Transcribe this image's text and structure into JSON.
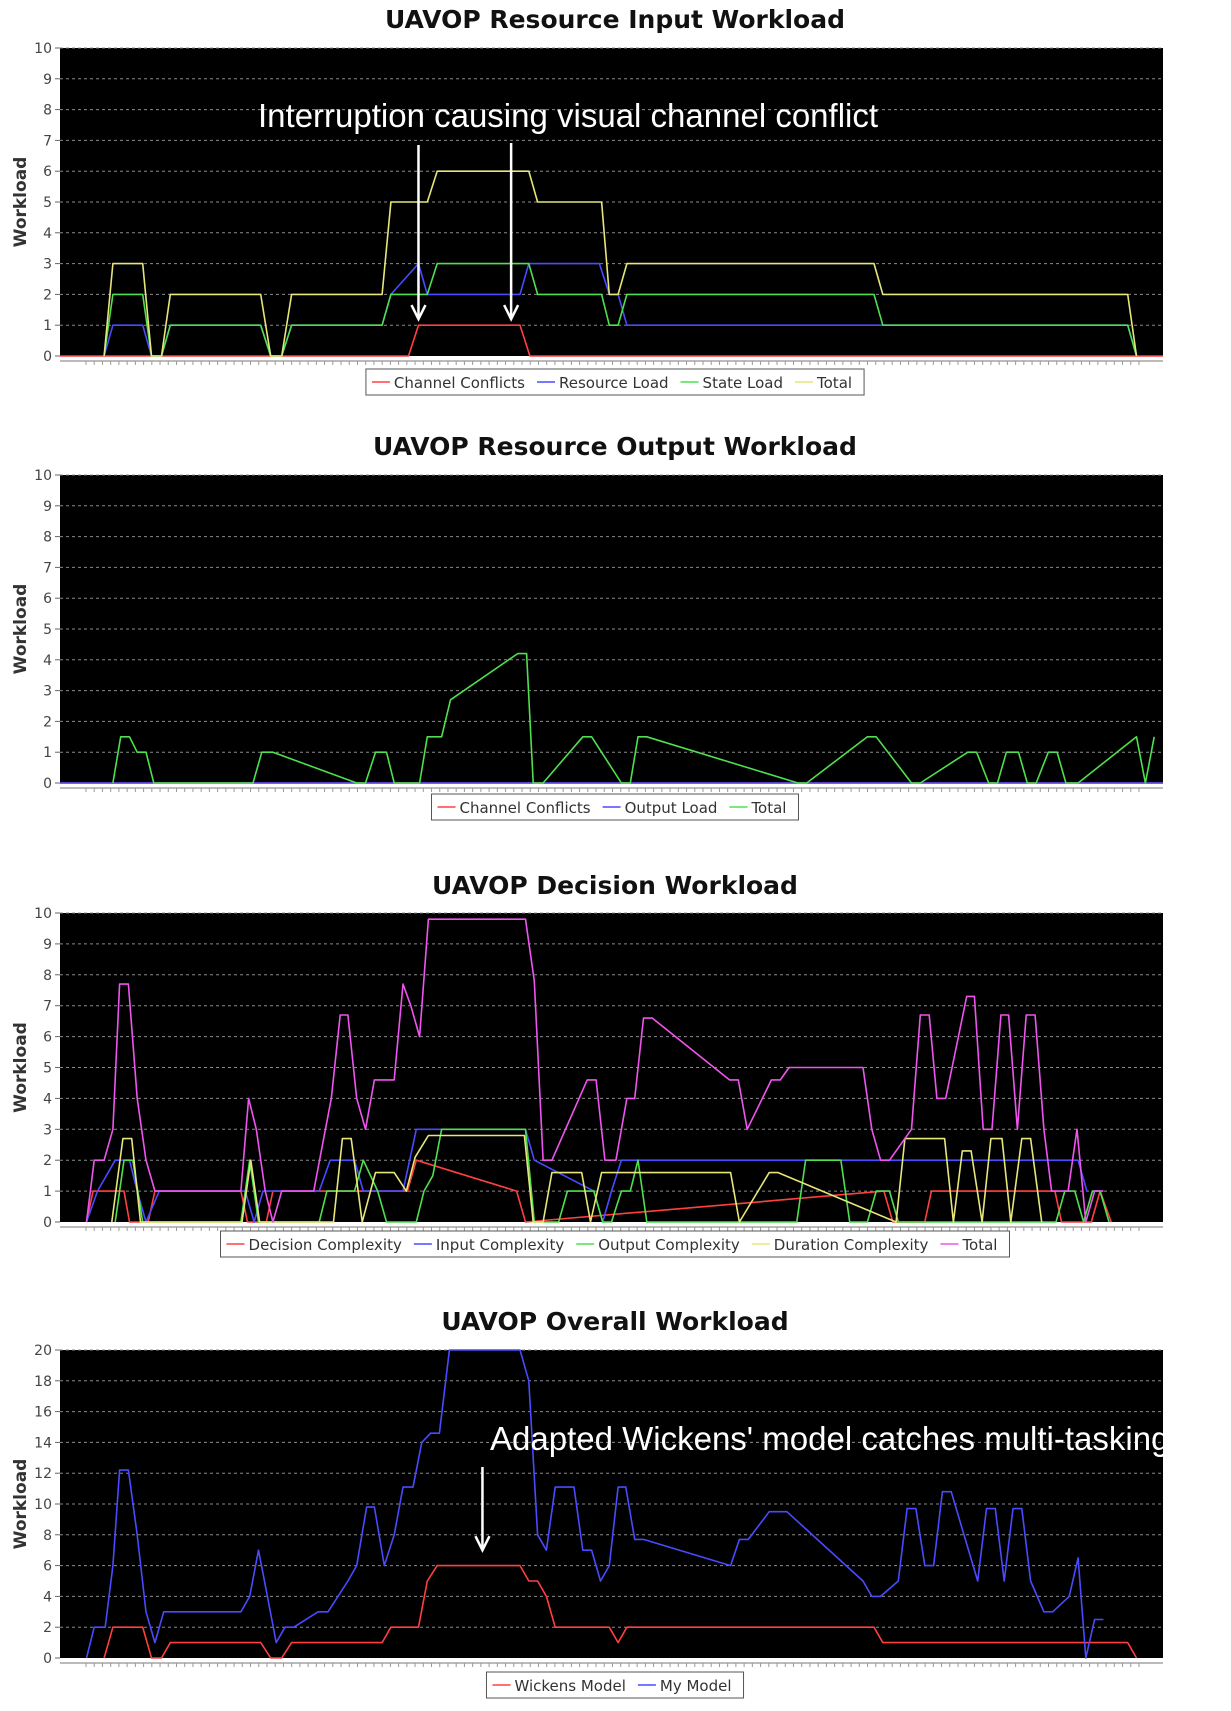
{
  "colors": {
    "red": "#ff4040",
    "blue": "#4a4aff",
    "green": "#4ee04e",
    "yellow": "#e6e67a",
    "magenta": "#ee55ee",
    "plot_background": "#000000",
    "grid": "#8a8a8a",
    "annotation": "#ffffff"
  },
  "chart_data": [
    {
      "type": "line",
      "title": "UAVOP Resource Input Workload",
      "xlabel": "",
      "ylabel": "Workload",
      "ylim": [
        0,
        10
      ],
      "yticks": [
        0,
        1,
        2,
        3,
        4,
        5,
        6,
        7,
        8,
        9,
        10
      ],
      "xlim": [
        0,
        100
      ],
      "grid": true,
      "legend": "bottom-center",
      "annotations": [
        {
          "text": "Interruption causing visual channel conflict",
          "arrows": [
            [
              32.5,
              1.2
            ],
            [
              40.9,
              1.2
            ]
          ]
        }
      ],
      "series": [
        {
          "name": "Channel Conflicts",
          "color": "red",
          "x": [
            0,
            31.6,
            32.5,
            41.7,
            42.6,
            100
          ],
          "y": [
            0,
            0,
            1,
            1,
            0,
            0
          ]
        },
        {
          "name": "Resource Load",
          "color": "blue",
          "x": [
            4,
            4.8,
            7.5,
            8.3,
            9.2,
            10,
            18.2,
            19.1,
            20.1,
            21,
            29.2,
            30,
            32.5,
            33.3,
            41.7,
            42.5,
            48.9,
            49.8,
            50.6,
            51.4,
            96.8,
            97.6
          ],
          "y": [
            0,
            1,
            1,
            0,
            0,
            1,
            1,
            0,
            0,
            1,
            1,
            2,
            3,
            2,
            2,
            3,
            3,
            2,
            2,
            1,
            1,
            0
          ]
        },
        {
          "name": "State Load",
          "color": "green",
          "x": [
            4,
            4.8,
            7.5,
            8.3,
            9.2,
            10,
            18.2,
            19.1,
            20.1,
            21,
            29.2,
            30,
            32.5,
            33.3,
            34.2,
            42.5,
            43.3,
            49.1,
            49.8,
            50.6,
            51.4,
            73.8,
            74.6,
            96.8,
            97.6
          ],
          "y": [
            0,
            2,
            2,
            0,
            0,
            1,
            1,
            0,
            0,
            1,
            1,
            2,
            2,
            2,
            3,
            3,
            2,
            2,
            1,
            1,
            2,
            2,
            1,
            1,
            0
          ]
        },
        {
          "name": "Total",
          "color": "yellow",
          "x": [
            4,
            4.8,
            7.5,
            8.3,
            9.2,
            10,
            18.2,
            19.1,
            20.1,
            21,
            29.2,
            30,
            32.5,
            33.3,
            34.2,
            42.5,
            43.3,
            49.1,
            49.8,
            50.6,
            51.4,
            73.8,
            74.6,
            96.8,
            97.6
          ],
          "y": [
            0,
            3,
            3,
            0,
            0,
            2,
            2,
            0,
            0,
            2,
            2,
            5,
            5,
            5,
            6,
            6,
            5,
            5,
            2,
            2,
            3,
            3,
            2,
            2,
            0
          ]
        }
      ]
    },
    {
      "type": "line",
      "title": "UAVOP Resource Output Workload",
      "xlabel": "",
      "ylabel": "Workload",
      "ylim": [
        0,
        10
      ],
      "yticks": [
        0,
        1,
        2,
        3,
        4,
        5,
        6,
        7,
        8,
        9,
        10
      ],
      "xlim": [
        0,
        100
      ],
      "grid": true,
      "legend": "bottom-center",
      "series": [
        {
          "name": "Channel Conflicts",
          "color": "red",
          "x": [
            0,
            100
          ],
          "y": [
            0,
            0
          ]
        },
        {
          "name": "Output Load",
          "color": "blue",
          "x": [
            0,
            100
          ],
          "y": [
            0,
            0
          ]
        },
        {
          "name": "Total",
          "color": "green",
          "x": [
            4.8,
            5.5,
            6.3,
            7,
            7.8,
            8.5,
            17.5,
            18.3,
            19.3,
            26.9,
            27.7,
            28.6,
            29.6,
            30.3,
            32.6,
            33.3,
            33.7,
            34.6,
            35.4,
            41.5,
            42.3,
            42.9,
            43.8,
            47.4,
            48.2,
            50.9,
            51.7,
            52.4,
            53.2,
            66.9,
            67.7,
            73.2,
            74,
            77.2,
            78,
            82.3,
            83.1,
            84.2,
            85,
            85.8,
            86.9,
            87.7,
            88.5,
            89.6,
            90.4,
            91.2,
            92.3,
            97.6,
            98.4,
            99.2
          ],
          "y": [
            0,
            1.5,
            1.5,
            1,
            1,
            0,
            0,
            1,
            1,
            0,
            0,
            1,
            1,
            0,
            0,
            1.5,
            1.5,
            1.5,
            2.7,
            4.2,
            4.2,
            0,
            0,
            1.5,
            1.5,
            0,
            0,
            1.5,
            1.5,
            0,
            0,
            1.5,
            1.5,
            0,
            0,
            1,
            1,
            0,
            0,
            1,
            1,
            0,
            0,
            1,
            1,
            0,
            0,
            1.5,
            0,
            1.5
          ]
        }
      ]
    },
    {
      "type": "line",
      "title": "UAVOP Decision Workload",
      "xlabel": "",
      "ylabel": "Workload",
      "ylim": [
        0,
        10
      ],
      "yticks": [
        0,
        1,
        2,
        3,
        4,
        5,
        6,
        7,
        8,
        9,
        10
      ],
      "xlim": [
        0,
        100
      ],
      "grid": true,
      "legend": "bottom-center",
      "series": [
        {
          "name": "Decision Complexity",
          "color": "red",
          "x": [
            2.4,
            3,
            5.8,
            6.3,
            8,
            8.6,
            16.4,
            17,
            18.7,
            19.3,
            23,
            23.6,
            31.5,
            32.3,
            41.4,
            42.2,
            74.7,
            75.5,
            78.4,
            79,
            90.2,
            90.8,
            93.5,
            94.3,
            95.3
          ],
          "y": [
            0,
            1,
            1,
            0,
            0,
            1,
            1,
            0,
            0,
            1,
            1,
            1,
            1,
            2,
            1,
            0,
            1,
            0,
            0,
            1,
            1,
            0,
            0,
            1,
            0
          ]
        },
        {
          "name": "Input Complexity",
          "color": "blue",
          "x": [
            2.4,
            3.4,
            5,
            6.3,
            7,
            7.8,
            9,
            16.8,
            17.6,
            18.4,
            23.5,
            24.5,
            26.7,
            27.5,
            29.5,
            31.1,
            32.3,
            33.3,
            42.2,
            43,
            48.4,
            49.2,
            50,
            50.9,
            51.7,
            92.3,
            93.1
          ],
          "y": [
            0,
            1,
            2,
            2,
            1,
            0,
            1,
            1,
            0,
            1,
            1,
            2,
            2,
            1,
            1,
            1,
            3,
            3,
            3,
            2,
            1,
            0,
            1,
            2,
            2,
            2,
            1
          ]
        },
        {
          "name": "Output Complexity",
          "color": "green",
          "x": [
            5,
            5.8,
            6.6,
            7.5,
            16.4,
            17.2,
            18,
            23.5,
            24.2,
            26.7,
            27.5,
            28.8,
            29.6,
            32.3,
            33,
            33.8,
            34.6,
            42.2,
            43,
            45.2,
            46,
            48.4,
            49.2,
            50,
            50.9,
            51.7,
            52.4,
            53.2,
            66.8,
            67.6,
            70.8,
            71.6,
            73.2,
            74,
            75.2,
            76,
            90.3,
            91.1,
            92,
            92.8,
            93.6,
            94.3,
            95.1
          ],
          "y": [
            0,
            2,
            2,
            0,
            0,
            2,
            0,
            0,
            1,
            1,
            2,
            1,
            0,
            0,
            1,
            1.5,
            3,
            3,
            0,
            0,
            1,
            1,
            0,
            0,
            1,
            1,
            2,
            0,
            0,
            2,
            2,
            0,
            0,
            1,
            1,
            0,
            0,
            1,
            1,
            0,
            1,
            1,
            0
          ]
        },
        {
          "name": "Duration Complexity",
          "color": "yellow",
          "x": [
            4.7,
            5.7,
            6.5,
            7.3,
            16.5,
            17.3,
            18.1,
            24.8,
            25.6,
            26.4,
            27.4,
            28.6,
            30.3,
            31.4,
            32.2,
            33.4,
            34.3,
            42.1,
            42.9,
            43.8,
            44.6,
            47.3,
            48.1,
            49.1,
            49.9,
            60.8,
            61.6,
            64.3,
            65.1,
            75.8,
            76.6,
            80.2,
            81,
            81.8,
            82.6,
            83.6,
            84.4,
            85.4,
            86.2,
            87.2,
            88,
            89
          ],
          "y": [
            0,
            2.7,
            2.7,
            0,
            0,
            2,
            0,
            0,
            2.7,
            2.7,
            0,
            1.6,
            1.6,
            1,
            2.1,
            2.8,
            2.8,
            2.8,
            0,
            0,
            1.6,
            1.6,
            0,
            1.6,
            1.6,
            1.6,
            0,
            1.6,
            1.6,
            0,
            2.7,
            2.7,
            0,
            2.3,
            2.3,
            0,
            2.7,
            2.7,
            0,
            2.7,
            2.7,
            0
          ]
        },
        {
          "name": "Total",
          "color": "magenta",
          "x": [
            2.4,
            3.1,
            4,
            4.8,
            5.4,
            6.2,
            7,
            7.8,
            8.6,
            16.4,
            17.1,
            17.8,
            18.6,
            19.3,
            20.1,
            20.9,
            23,
            24.6,
            25.4,
            26.1,
            26.9,
            27.7,
            28.5,
            30.3,
            31.1,
            31.8,
            32.6,
            33.4,
            34.2,
            34.9,
            42.2,
            43.0,
            43.8,
            44.6,
            47.8,
            48.6,
            49.4,
            50.4,
            51.4,
            52.1,
            52.9,
            53.7,
            60.7,
            61.5,
            62.3,
            64.5,
            65.3,
            66.1,
            72.8,
            73.6,
            74.4,
            75.2,
            77.2,
            78.0,
            78.8,
            79.5,
            80.3,
            82.2,
            82.9,
            83.7,
            84.5,
            85.3,
            86.0,
            86.8,
            87.6,
            88.4,
            89.2,
            89.9,
            91.4,
            92.2,
            93.0,
            93.8,
            94.6
          ],
          "y": [
            0,
            2,
            2,
            3,
            7.7,
            7.7,
            4,
            2,
            1,
            1,
            4,
            3,
            1,
            0,
            1,
            1,
            1,
            4,
            6.7,
            6.7,
            4,
            3,
            4.6,
            4.6,
            7.7,
            7,
            6,
            9.8,
            9.8,
            9.8,
            9.8,
            7.8,
            2,
            2,
            4.6,
            4.6,
            2,
            2,
            4,
            4,
            6.6,
            6.6,
            4.6,
            4.6,
            3,
            4.6,
            4.6,
            5,
            5,
            3,
            2,
            2,
            3,
            6.7,
            6.7,
            4,
            4,
            7.3,
            7.3,
            3,
            3,
            6.7,
            6.7,
            3,
            6.7,
            6.7,
            3,
            1,
            1,
            3,
            0,
            1,
            1
          ]
        }
      ]
    },
    {
      "type": "line",
      "title": "UAVOP Overall Workload",
      "xlabel": "",
      "ylabel": "Workload",
      "ylim": [
        0,
        20
      ],
      "yticks": [
        0,
        2,
        4,
        6,
        8,
        10,
        12,
        14,
        16,
        18,
        20
      ],
      "xlim": [
        0,
        100
      ],
      "grid": true,
      "legend": "bottom-center",
      "annotations": [
        {
          "text": "Adapted Wickens' model catches multi-tasking and channel conflict",
          "arrows": [
            [
              38.3,
              7
            ]
          ]
        }
      ],
      "series": [
        {
          "name": "Wickens Model",
          "color": "red",
          "x": [
            4,
            4.8,
            7.5,
            8.3,
            9.2,
            10,
            18.2,
            19.1,
            20.1,
            21,
            29.2,
            30,
            32.5,
            33.3,
            34.2,
            41.7,
            42.5,
            43.3,
            44.1,
            44.9,
            49.8,
            50.6,
            51.4,
            73.8,
            74.6,
            96.8,
            97.6
          ],
          "y": [
            0,
            2,
            2,
            0,
            0,
            1,
            1,
            0,
            0,
            1,
            1,
            2,
            2,
            5,
            6,
            6,
            5,
            5,
            4,
            2,
            2,
            1,
            2,
            2,
            1,
            1,
            0
          ]
        },
        {
          "name": "My Model",
          "color": "blue",
          "x": [
            2.4,
            3.1,
            4.1,
            4.8,
            5.4,
            6.2,
            7,
            7.8,
            8.6,
            9.4,
            16.4,
            17.2,
            18,
            18.8,
            19.6,
            20.4,
            21.2,
            23.4,
            24.3,
            25.2,
            26.1,
            26.9,
            27.8,
            28.5,
            29.4,
            30.3,
            31.1,
            32,
            32.8,
            33.6,
            34.4,
            35.3,
            41.7,
            42.5,
            43.3,
            44.1,
            44.9,
            46.6,
            47.4,
            48.2,
            49,
            49.8,
            50.6,
            51.3,
            52.1,
            52.9,
            60.8,
            61.6,
            62.4,
            64.3,
            65.1,
            65.9,
            72.8,
            73.6,
            74.4,
            76,
            76.8,
            77.6,
            78.4,
            79.2,
            80,
            80.8,
            83.2,
            84,
            84.8,
            85.6,
            86.4,
            87.2,
            88,
            89.2,
            90,
            91.5,
            92.3,
            93,
            93.8,
            94.6
          ],
          "y": [
            0,
            2,
            2,
            6,
            12.2,
            12.2,
            8,
            3,
            1,
            3,
            3,
            4,
            7,
            4,
            1,
            2,
            2,
            3,
            3,
            4,
            5,
            6,
            9.8,
            9.8,
            6,
            8,
            11.1,
            11.1,
            14,
            14.6,
            14.6,
            20,
            20,
            18,
            8,
            7,
            11.1,
            11.1,
            7,
            7,
            5,
            6,
            11.1,
            11.1,
            7.7,
            7.7,
            6,
            7.7,
            7.7,
            9.5,
            9.5,
            9.5,
            5,
            4,
            4,
            5,
            9.7,
            9.7,
            6,
            6,
            10.8,
            10.8,
            5,
            9.7,
            9.7,
            5,
            9.7,
            9.7,
            5,
            3,
            3,
            4,
            6.5,
            0,
            2.5,
            2.5
          ]
        }
      ]
    }
  ]
}
